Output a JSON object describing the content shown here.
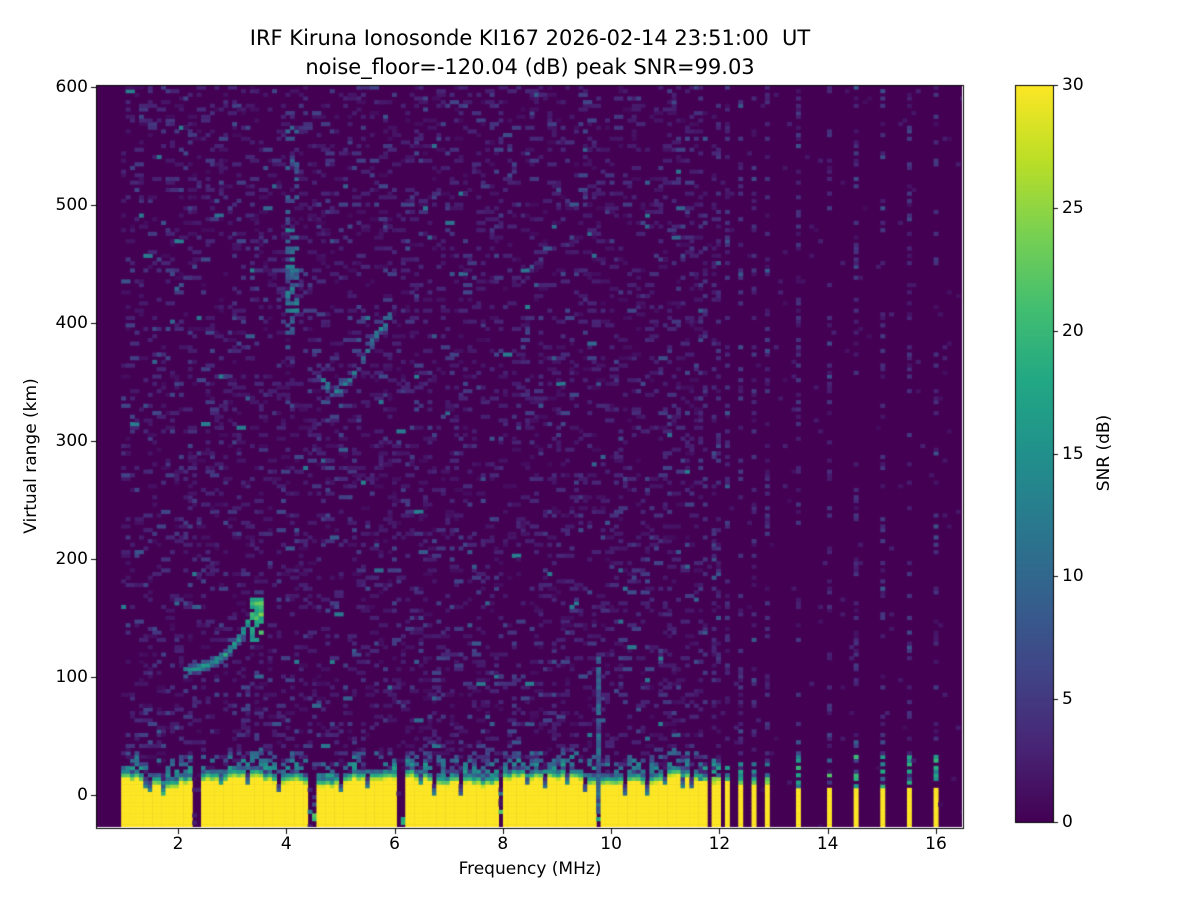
{
  "chart_data": {
    "type": "heatmap",
    "title": "IRF Kiruna Ionosonde KI167 2026-02-14 23:51:00  UT",
    "subtitle": "noise_floor=-120.04 (dB) peak SNR=99.03",
    "xlabel": "Frequency (MHz)",
    "ylabel": "Virtual range (km)",
    "colorbar_label": "SNR (dB)",
    "x_ticks": [
      2,
      4,
      6,
      8,
      10,
      12,
      14,
      16
    ],
    "y_ticks": [
      0,
      100,
      200,
      300,
      400,
      500,
      600
    ],
    "colorbar_ticks": [
      0,
      5,
      10,
      15,
      20,
      25,
      30
    ],
    "xlim_mhz": [
      0.5,
      16.5
    ],
    "ylim_km": [
      -28,
      602
    ],
    "snr_range_db": [
      0,
      30
    ],
    "colormap": "viridis",
    "colormap_stops": [
      "#440154",
      "#482475",
      "#414487",
      "#355f8d",
      "#2a788e",
      "#21918c",
      "#22a884",
      "#44bf70",
      "#7ad151",
      "#bddf26",
      "#fde725"
    ],
    "background_color": "#ffffff",
    "data_freq_range_mhz": [
      0.95,
      16.45
    ],
    "ground_clutter_band": {
      "freq_span_mhz": [
        0.95,
        11.56
      ],
      "saturated_snr_db": 30,
      "top_km_mean": 20,
      "notches": [
        [
          1.41,
          0.5,
          0.05
        ],
        [
          1.66,
          0.4,
          0.04
        ],
        [
          2.3,
          0.9,
          0.05
        ],
        [
          2.78,
          0.35,
          0.04
        ],
        [
          3.26,
          0.6,
          0.05
        ],
        [
          3.81,
          0.7,
          0.05
        ],
        [
          4.42,
          0.95,
          0.06
        ],
        [
          4.97,
          0.55,
          0.05
        ],
        [
          5.47,
          0.6,
          0.05
        ],
        [
          6.06,
          0.97,
          0.08
        ],
        [
          6.45,
          0.4,
          0.04
        ],
        [
          6.71,
          0.6,
          0.05
        ],
        [
          7.19,
          0.8,
          0.05
        ],
        [
          7.91,
          0.97,
          0.07
        ],
        [
          8.43,
          0.6,
          0.05
        ],
        [
          8.74,
          0.65,
          0.05
        ],
        [
          9.13,
          0.45,
          0.04
        ],
        [
          9.46,
          0.7,
          0.05
        ],
        [
          9.74,
          0.92,
          0.05
        ],
        [
          10.2,
          0.75,
          0.05
        ],
        [
          10.62,
          0.65,
          0.05
        ],
        [
          10.95,
          0.5,
          0.04
        ],
        [
          11.25,
          0.6,
          0.04
        ],
        [
          11.45,
          0.7,
          0.04
        ]
      ]
    },
    "e_region_trace": {
      "points_mhz_km": [
        [
          2.05,
          103
        ],
        [
          2.25,
          105
        ],
        [
          2.45,
          108
        ],
        [
          2.65,
          112
        ],
        [
          2.85,
          118
        ],
        [
          3.0,
          126
        ],
        [
          3.12,
          134
        ],
        [
          3.22,
          142
        ],
        [
          3.3,
          150
        ]
      ],
      "cusp": {
        "freq_mhz": [
          3.28,
          3.54
        ],
        "range_km": [
          128,
          166
        ]
      },
      "peak_snr_db": 22
    },
    "f_region_trace": {
      "spread_column": {
        "freq_mhz": [
          3.94,
          4.18
        ],
        "range_km": [
          385,
          480
        ],
        "faint_to_km": 565
      },
      "arc_points_mhz_km": [
        [
          4.2,
          452
        ],
        [
          4.32,
          420
        ],
        [
          4.42,
          392
        ],
        [
          4.52,
          362
        ],
        [
          4.65,
          348
        ],
        [
          4.85,
          340
        ],
        [
          5.05,
          346
        ],
        [
          5.25,
          359
        ],
        [
          5.45,
          376
        ],
        [
          5.65,
          391
        ],
        [
          5.8,
          400
        ],
        [
          5.92,
          408
        ]
      ],
      "peak_snr_db": 16
    },
    "interference_streak": {
      "freq_mhz": 9.73,
      "range_km": [
        -18,
        115
      ],
      "snr_db": 10
    },
    "rfi_channels_mhz": {
      "dense": [
        11.66,
        11.9,
        12.13,
        12.37,
        12.61,
        12.85
      ],
      "sparse": [
        13.45,
        13.97,
        14.47,
        14.97,
        15.47,
        15.97
      ]
    },
    "noise": {
      "speckle_probability": 0.16,
      "max_speckle_snr_db": 13,
      "seed": 1167
    }
  }
}
